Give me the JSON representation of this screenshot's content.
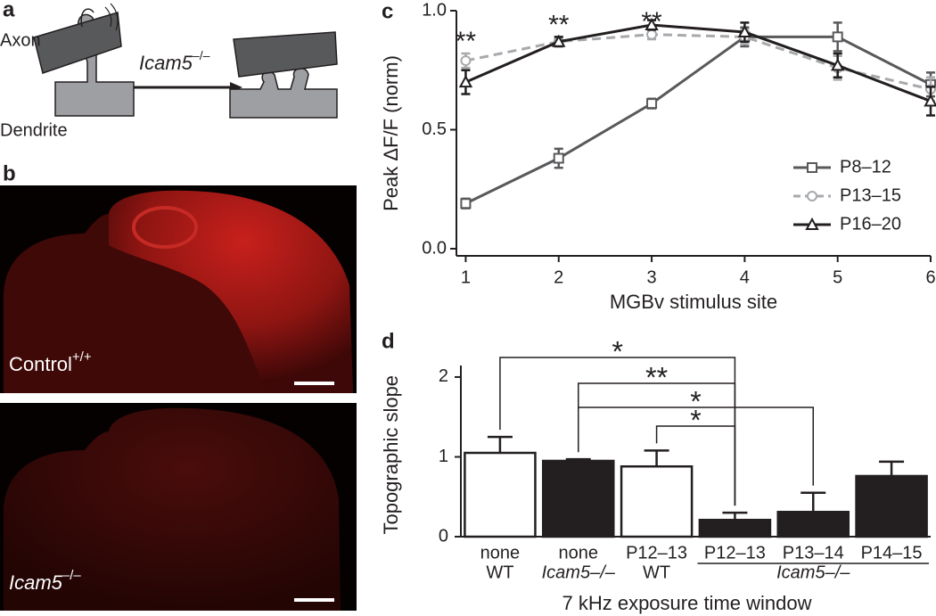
{
  "panels": {
    "a": {
      "label": "a",
      "axon": "Axon",
      "dendrite": "Dendrite",
      "arrow_label": {
        "gene": "Icam5",
        "genotype": "–/–"
      }
    },
    "b": {
      "label": "b",
      "top": {
        "name": "Control",
        "genotype": "+/+"
      },
      "bottom": {
        "gene": "Icam5",
        "genotype": "–/–"
      }
    }
  },
  "chart_data": [
    {
      "type": "line",
      "panel_label": "c",
      "x": [
        1,
        2,
        3,
        4,
        5,
        6
      ],
      "xlim": [
        0.9,
        6
      ],
      "xticks": [
        1,
        2,
        3,
        4,
        5,
        6
      ],
      "ylim": [
        -0.03,
        1.0
      ],
      "yticks": [
        {
          "value": 0,
          "label": "0.0"
        },
        0.5,
        {
          "value": 1,
          "label": "1.0"
        }
      ],
      "xlabel": "MGBv stimulus site",
      "ylabel": "Peak ΔF/F (norm)",
      "legend": "lower right",
      "series": [
        {
          "name": "P8–12",
          "color": "#58595b",
          "marker": "square",
          "dashed": false,
          "values": [
            0.19,
            0.38,
            0.61,
            0.89,
            0.89,
            0.69
          ],
          "errors": [
            0.02,
            0.04,
            0.02,
            0.04,
            0.06,
            0.05
          ]
        },
        {
          "name": "P13–15",
          "color": "#a7a9ac",
          "marker": "circle",
          "dashed": true,
          "values": [
            0.79,
            0.87,
            0.9,
            0.89,
            0.76,
            0.67
          ],
          "errors": [
            0.03,
            0.02,
            0.02,
            0.03,
            0.05,
            0.05
          ]
        },
        {
          "name": "P16–20",
          "color": "#231f20",
          "marker": "triangle",
          "dashed": false,
          "values": [
            0.7,
            0.87,
            0.94,
            0.91,
            0.77,
            0.62
          ],
          "errors": [
            0.05,
            0.02,
            0.02,
            0.04,
            0.05,
            0.06
          ]
        }
      ],
      "annotations": [
        {
          "x": 1,
          "label": "**"
        },
        {
          "x": 2,
          "label": "**"
        },
        {
          "x": 3,
          "label": "**"
        }
      ]
    },
    {
      "type": "bar",
      "panel_label": "d",
      "categories": [
        [
          "none",
          "WT"
        ],
        [
          "none",
          "Icam5–/–"
        ],
        [
          "P12–13",
          "WT"
        ],
        [
          "P12–13"
        ],
        [
          "P13–14"
        ],
        [
          "P14–15"
        ]
      ],
      "group_label": "Icam5–/–",
      "values": [
        1.05,
        0.95,
        0.88,
        0.21,
        0.31,
        0.76
      ],
      "errors": [
        0.2,
        0.02,
        0.2,
        0.09,
        0.24,
        0.18
      ],
      "colors": [
        "#ffffff",
        "#231f20",
        "#ffffff",
        "#231f20",
        "#231f20",
        "#231f20"
      ],
      "ylim": [
        -0.05,
        2.1
      ],
      "yticks": [
        0,
        1,
        2
      ],
      "xlabel": "7 kHz exposure time window",
      "ylabel": "Topographic slope",
      "comparisons": [
        {
          "from": 0,
          "to": 3,
          "label": "*"
        },
        {
          "from": 1,
          "to": 3,
          "label": "**"
        },
        {
          "from": 1,
          "to": 4,
          "label": "*"
        },
        {
          "from": 2,
          "to": 3,
          "label": "*"
        }
      ]
    }
  ]
}
